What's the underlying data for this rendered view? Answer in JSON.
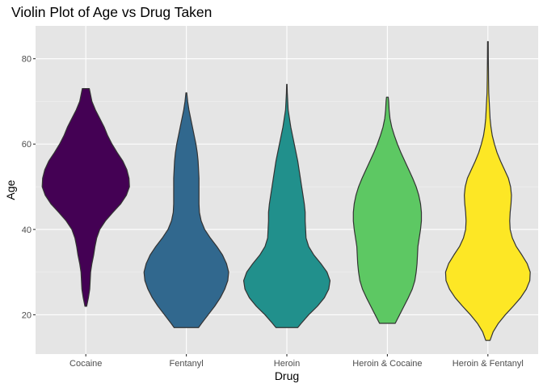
{
  "chart_data": {
    "type": "violin",
    "title": "Violin Plot of Age vs Drug Taken",
    "xlabel": "Drug",
    "ylabel": "Age",
    "categories": [
      "Cocaine",
      "Fentanyl",
      "Heroin",
      "Heroin & Cocaine",
      "Heroin & Fentanyl"
    ],
    "ylim": [
      10.8,
      87.7
    ],
    "yticks": [
      20,
      40,
      60,
      80
    ],
    "grid": true,
    "legend": "none",
    "series": [
      {
        "name": "Cocaine",
        "color": "#440154",
        "profile": [
          [
            22,
            0.02
          ],
          [
            24,
            0.06
          ],
          [
            26,
            0.09
          ],
          [
            28,
            0.1
          ],
          [
            30,
            0.11
          ],
          [
            32,
            0.14
          ],
          [
            34,
            0.18
          ],
          [
            36,
            0.21
          ],
          [
            38,
            0.25
          ],
          [
            40,
            0.32
          ],
          [
            42,
            0.45
          ],
          [
            44,
            0.62
          ],
          [
            46,
            0.8
          ],
          [
            48,
            0.93
          ],
          [
            50,
            1.0
          ],
          [
            52,
            0.99
          ],
          [
            54,
            0.94
          ],
          [
            56,
            0.85
          ],
          [
            58,
            0.72
          ],
          [
            60,
            0.6
          ],
          [
            62,
            0.5
          ],
          [
            64,
            0.42
          ],
          [
            66,
            0.32
          ],
          [
            68,
            0.22
          ],
          [
            70,
            0.14
          ],
          [
            72,
            0.1
          ],
          [
            73,
            0.08
          ]
        ]
      },
      {
        "name": "Fentanyl",
        "color": "#31688e",
        "profile": [
          [
            17,
            0.28
          ],
          [
            18,
            0.35
          ],
          [
            20,
            0.5
          ],
          [
            22,
            0.65
          ],
          [
            24,
            0.78
          ],
          [
            26,
            0.88
          ],
          [
            28,
            0.95
          ],
          [
            30,
            0.97
          ],
          [
            32,
            0.92
          ],
          [
            34,
            0.83
          ],
          [
            36,
            0.7
          ],
          [
            38,
            0.55
          ],
          [
            40,
            0.42
          ],
          [
            42,
            0.34
          ],
          [
            44,
            0.3
          ],
          [
            46,
            0.29
          ],
          [
            48,
            0.29
          ],
          [
            50,
            0.29
          ],
          [
            52,
            0.29
          ],
          [
            54,
            0.28
          ],
          [
            56,
            0.27
          ],
          [
            58,
            0.25
          ],
          [
            60,
            0.22
          ],
          [
            62,
            0.18
          ],
          [
            64,
            0.14
          ],
          [
            66,
            0.1
          ],
          [
            68,
            0.06
          ],
          [
            70,
            0.03
          ],
          [
            72,
            0.01
          ]
        ]
      },
      {
        "name": "Heroin",
        "color": "#21908c",
        "profile": [
          [
            17,
            0.25
          ],
          [
            18,
            0.33
          ],
          [
            20,
            0.5
          ],
          [
            22,
            0.7
          ],
          [
            24,
            0.86
          ],
          [
            26,
            0.96
          ],
          [
            28,
            0.99
          ],
          [
            30,
            0.92
          ],
          [
            32,
            0.78
          ],
          [
            34,
            0.62
          ],
          [
            36,
            0.5
          ],
          [
            38,
            0.44
          ],
          [
            40,
            0.43
          ],
          [
            42,
            0.42
          ],
          [
            44,
            0.42
          ],
          [
            46,
            0.4
          ],
          [
            48,
            0.37
          ],
          [
            50,
            0.34
          ],
          [
            52,
            0.31
          ],
          [
            54,
            0.28
          ],
          [
            56,
            0.25
          ],
          [
            58,
            0.21
          ],
          [
            60,
            0.17
          ],
          [
            62,
            0.13
          ],
          [
            64,
            0.09
          ],
          [
            66,
            0.06
          ],
          [
            68,
            0.03
          ],
          [
            70,
            0.02
          ],
          [
            72,
            0.01
          ],
          [
            74,
            0.005
          ]
        ]
      },
      {
        "name": "Heroin & Cocaine",
        "color": "#5dc863",
        "profile": [
          [
            18,
            0.18
          ],
          [
            20,
            0.28
          ],
          [
            22,
            0.38
          ],
          [
            24,
            0.48
          ],
          [
            26,
            0.57
          ],
          [
            28,
            0.63
          ],
          [
            30,
            0.66
          ],
          [
            32,
            0.68
          ],
          [
            34,
            0.69
          ],
          [
            36,
            0.7
          ],
          [
            38,
            0.73
          ],
          [
            40,
            0.76
          ],
          [
            42,
            0.78
          ],
          [
            44,
            0.78
          ],
          [
            46,
            0.76
          ],
          [
            48,
            0.72
          ],
          [
            50,
            0.66
          ],
          [
            52,
            0.58
          ],
          [
            54,
            0.49
          ],
          [
            56,
            0.4
          ],
          [
            58,
            0.31
          ],
          [
            60,
            0.23
          ],
          [
            62,
            0.16
          ],
          [
            64,
            0.1
          ],
          [
            66,
            0.06
          ],
          [
            68,
            0.04
          ],
          [
            70,
            0.03
          ],
          [
            71,
            0.02
          ]
        ]
      },
      {
        "name": "Heroin & Fentanyl",
        "color": "#fde725",
        "profile": [
          [
            14,
            0.05
          ],
          [
            16,
            0.12
          ],
          [
            18,
            0.24
          ],
          [
            20,
            0.4
          ],
          [
            22,
            0.58
          ],
          [
            24,
            0.75
          ],
          [
            26,
            0.88
          ],
          [
            28,
            0.96
          ],
          [
            30,
            0.97
          ],
          [
            32,
            0.9
          ],
          [
            34,
            0.78
          ],
          [
            36,
            0.65
          ],
          [
            38,
            0.56
          ],
          [
            40,
            0.51
          ],
          [
            42,
            0.5
          ],
          [
            44,
            0.51
          ],
          [
            46,
            0.53
          ],
          [
            48,
            0.54
          ],
          [
            50,
            0.52
          ],
          [
            52,
            0.47
          ],
          [
            54,
            0.38
          ],
          [
            56,
            0.29
          ],
          [
            58,
            0.21
          ],
          [
            60,
            0.15
          ],
          [
            62,
            0.1
          ],
          [
            64,
            0.07
          ],
          [
            66,
            0.05
          ],
          [
            68,
            0.04
          ],
          [
            70,
            0.03
          ],
          [
            72,
            0.02
          ],
          [
            75,
            0.015
          ],
          [
            78,
            0.012
          ],
          [
            80,
            0.01
          ],
          [
            84,
            0.008
          ]
        ]
      }
    ]
  }
}
